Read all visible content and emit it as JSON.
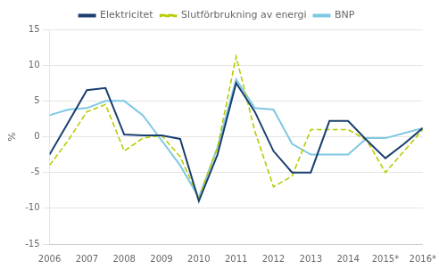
{
  "chart_data": {
    "type": "line",
    "y_label": "%",
    "x": [
      2006,
      2006.5,
      2007,
      2007.5,
      2008,
      2008.5,
      2009,
      2009.5,
      2010,
      2010.5,
      2011,
      2011.5,
      2012,
      2012.5,
      2013,
      2013.5,
      2014,
      2014.5,
      2015,
      2015.5,
      2016
    ],
    "series": [
      {
        "name": "Elektricitet",
        "color": "#1a3f6f",
        "line_style": "solid",
        "values": [
          -2.5,
          2.0,
          6.5,
          6.8,
          0.3,
          0.2,
          0.2,
          -0.3,
          -9.0,
          -2.5,
          7.5,
          3.5,
          -2.0,
          -5.0,
          -5.0,
          2.2,
          2.2,
          -0.5,
          -3.0,
          -1.0,
          1.2
        ]
      },
      {
        "name": "Slutförbrukning av energi",
        "color": "#b8cc00",
        "line_style": "dashed",
        "values": [
          -4.0,
          -0.5,
          3.5,
          4.5,
          -2.0,
          -0.2,
          0.2,
          -2.8,
          -8.5,
          -1.5,
          11.2,
          0.8,
          -7.0,
          -5.5,
          1.0,
          1.0,
          1.0,
          -0.5,
          -5.0,
          -2.0,
          1.0
        ]
      },
      {
        "name": "BNP",
        "color": "#7ec8e3",
        "line_style": "solid",
        "values": [
          3.0,
          3.8,
          4.0,
          5.0,
          5.0,
          3.0,
          -0.5,
          -4.0,
          -8.5,
          -1.5,
          8.0,
          4.0,
          3.8,
          -1.0,
          -2.5,
          -2.5,
          -2.5,
          -0.2,
          -0.2,
          0.5,
          1.2
        ]
      }
    ],
    "xlim": [
      2006,
      2016
    ],
    "xticks": [
      2006,
      2007,
      2008,
      2009,
      2010,
      2011,
      2012,
      2013,
      2014,
      {
        "value": 2015,
        "label": "2015*"
      },
      {
        "value": 2016,
        "label": "2016*"
      }
    ],
    "ylim": [
      -15,
      15
    ],
    "yticks": [
      -15,
      -10,
      -5,
      0,
      5,
      10,
      15
    ],
    "grid": "y",
    "legend": "top"
  }
}
